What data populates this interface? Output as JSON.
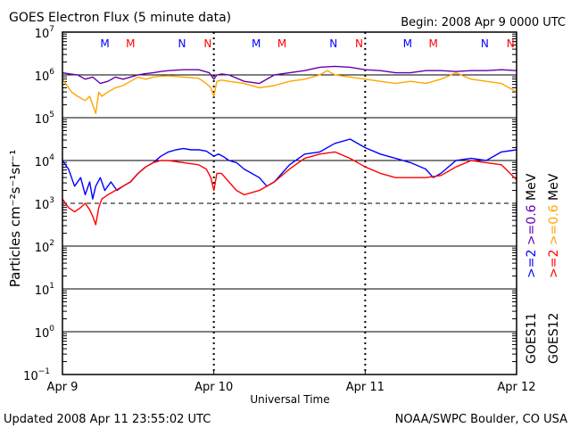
{
  "chart_data": {
    "type": "line",
    "title": "GOES Electron Flux (5 minute data)",
    "begin": "Begin: 2008 Apr 9 0000 UTC",
    "xlabel": "Universal Time",
    "ylabel": "Particles cm⁻²s⁻¹sr⁻¹",
    "updated": "Updated 2008 Apr 11 23:55:02 UTC",
    "credit": "NOAA/SWPC Boulder, CO USA",
    "x_range_days": [
      0,
      3
    ],
    "x_ticks": [
      {
        "label": "Apr 9",
        "day": 0
      },
      {
        "label": "Apr 10",
        "day": 1
      },
      {
        "label": "Apr 11",
        "day": 2
      },
      {
        "label": "Apr 12",
        "day": 3
      }
    ],
    "ylim_exp": [
      -1,
      7
    ],
    "y_ticks": [
      {
        "base": "10",
        "exp": "7"
      },
      {
        "base": "10",
        "exp": "6"
      },
      {
        "base": "10",
        "exp": "5"
      },
      {
        "base": "10",
        "exp": "4"
      },
      {
        "base": "10",
        "exp": "3"
      },
      {
        "base": "10",
        "exp": "2"
      },
      {
        "base": "10",
        "exp": "1"
      },
      {
        "base": "10",
        "exp": "0"
      },
      {
        "base": "10",
        "exp": "−1"
      }
    ],
    "dashed_threshold_exp": 3,
    "midnight_markers": [
      {
        "day": 0.28,
        "label": "M",
        "color": "#0000ff"
      },
      {
        "day": 0.45,
        "label": "M",
        "color": "#ff0000"
      },
      {
        "day": 0.79,
        "label": "N",
        "color": "#0000ff"
      },
      {
        "day": 0.96,
        "label": "N",
        "color": "#ff0000"
      },
      {
        "day": 1.28,
        "label": "M",
        "color": "#0000ff"
      },
      {
        "day": 1.45,
        "label": "M",
        "color": "#ff0000"
      },
      {
        "day": 1.79,
        "label": "N",
        "color": "#0000ff"
      },
      {
        "day": 1.96,
        "label": "N",
        "color": "#ff0000"
      },
      {
        "day": 2.28,
        "label": "M",
        "color": "#0000ff"
      },
      {
        "day": 2.45,
        "label": "M",
        "color": "#ff0000"
      },
      {
        "day": 2.79,
        "label": "N",
        "color": "#0000ff"
      },
      {
        "day": 2.96,
        "label": "N",
        "color": "#ff0000"
      }
    ],
    "legend": [
      {
        "satellite": "GOES11",
        "entries": [
          {
            "text": ">=2",
            "color": "#0000ff"
          },
          {
            "text": ">=0.6",
            "color": "#6600aa"
          },
          {
            "text": "MeV",
            "color": "#000000"
          }
        ]
      },
      {
        "satellite": "GOES12",
        "entries": [
          {
            "text": ">=2",
            "color": "#ff0000"
          },
          {
            "text": ">=0.6",
            "color": "#ffa500"
          },
          {
            "text": "MeV",
            "color": "#000000"
          }
        ]
      }
    ],
    "series": [
      {
        "name": "GOES11 >=0.6 MeV",
        "color": "#6600aa",
        "x": [
          0,
          0.05,
          0.1,
          0.15,
          0.2,
          0.25,
          0.3,
          0.35,
          0.4,
          0.45,
          0.5,
          0.55,
          0.6,
          0.65,
          0.7,
          0.8,
          0.9,
          0.97,
          1.0,
          1.02,
          1.05,
          1.1,
          1.2,
          1.3,
          1.4,
          1.5,
          1.6,
          1.7,
          1.8,
          1.85,
          1.9,
          2.0,
          2.1,
          2.2,
          2.3,
          2.4,
          2.5,
          2.6,
          2.7,
          2.8,
          2.9,
          3.0
        ],
        "y": [
          6.05,
          6.02,
          6.0,
          5.9,
          5.95,
          5.8,
          5.85,
          5.95,
          5.9,
          5.95,
          6.0,
          6.03,
          6.05,
          6.08,
          6.1,
          6.12,
          6.12,
          6.05,
          5.9,
          6.0,
          6.02,
          6.0,
          5.85,
          5.8,
          6.0,
          6.05,
          6.1,
          6.18,
          6.2,
          6.19,
          6.18,
          6.12,
          6.1,
          6.05,
          6.05,
          6.1,
          6.1,
          6.08,
          6.1,
          6.1,
          6.12,
          6.1
        ]
      },
      {
        "name": "GOES12 >=0.6 MeV",
        "color": "#ffa500",
        "x": [
          0,
          0.03,
          0.06,
          0.1,
          0.15,
          0.18,
          0.2,
          0.22,
          0.24,
          0.26,
          0.3,
          0.35,
          0.4,
          0.45,
          0.5,
          0.55,
          0.6,
          0.65,
          0.7,
          0.8,
          0.9,
          0.95,
          0.98,
          1.0,
          1.02,
          1.05,
          1.1,
          1.2,
          1.3,
          1.4,
          1.5,
          1.6,
          1.7,
          1.75,
          1.8,
          1.9,
          2.0,
          2.1,
          2.2,
          2.3,
          2.4,
          2.5,
          2.6,
          2.7,
          2.8,
          2.9,
          3.0
        ],
        "y": [
          5.9,
          5.75,
          5.6,
          5.5,
          5.4,
          5.5,
          5.3,
          5.1,
          5.6,
          5.5,
          5.6,
          5.7,
          5.75,
          5.85,
          5.95,
          5.9,
          5.95,
          5.97,
          5.98,
          5.95,
          5.92,
          5.8,
          5.7,
          5.5,
          5.85,
          5.88,
          5.85,
          5.8,
          5.7,
          5.75,
          5.85,
          5.9,
          6.0,
          6.1,
          6.0,
          5.95,
          5.9,
          5.85,
          5.8,
          5.85,
          5.8,
          5.9,
          6.05,
          5.9,
          5.85,
          5.8,
          5.6
        ]
      },
      {
        "name": "GOES11 >=2 MeV",
        "color": "#0000ff",
        "x": [
          0,
          0.04,
          0.08,
          0.12,
          0.15,
          0.18,
          0.2,
          0.22,
          0.25,
          0.28,
          0.32,
          0.36,
          0.4,
          0.45,
          0.5,
          0.55,
          0.6,
          0.65,
          0.7,
          0.75,
          0.8,
          0.85,
          0.9,
          0.95,
          0.98,
          1.0,
          1.03,
          1.06,
          1.1,
          1.15,
          1.2,
          1.25,
          1.3,
          1.35,
          1.4,
          1.5,
          1.6,
          1.7,
          1.8,
          1.9,
          2.0,
          2.1,
          2.2,
          2.3,
          2.4,
          2.45,
          2.5,
          2.6,
          2.7,
          2.8,
          2.9,
          3.0
        ],
        "y": [
          4.0,
          3.8,
          3.4,
          3.6,
          3.2,
          3.5,
          3.1,
          3.4,
          3.6,
          3.3,
          3.5,
          3.3,
          3.4,
          3.5,
          3.7,
          3.85,
          3.95,
          4.1,
          4.2,
          4.25,
          4.28,
          4.25,
          4.25,
          4.22,
          4.15,
          4.1,
          4.15,
          4.1,
          4.0,
          3.95,
          3.8,
          3.7,
          3.6,
          3.4,
          3.5,
          3.9,
          4.15,
          4.2,
          4.4,
          4.5,
          4.3,
          4.15,
          4.05,
          3.95,
          3.8,
          3.6,
          3.7,
          4.0,
          4.05,
          4.0,
          4.2,
          4.25
        ]
      },
      {
        "name": "GOES12 >=2 MeV",
        "color": "#ff0000",
        "x": [
          0,
          0.04,
          0.08,
          0.12,
          0.15,
          0.18,
          0.2,
          0.22,
          0.24,
          0.26,
          0.3,
          0.35,
          0.4,
          0.45,
          0.5,
          0.55,
          0.6,
          0.65,
          0.7,
          0.8,
          0.9,
          0.95,
          0.98,
          1.0,
          1.02,
          1.05,
          1.1,
          1.15,
          1.2,
          1.3,
          1.4,
          1.5,
          1.6,
          1.7,
          1.8,
          1.9,
          2.0,
          2.1,
          2.2,
          2.3,
          2.4,
          2.5,
          2.6,
          2.7,
          2.8,
          2.9,
          3.0
        ],
        "y": [
          3.1,
          2.9,
          2.8,
          2.9,
          3.0,
          2.85,
          2.7,
          2.5,
          2.9,
          3.1,
          3.2,
          3.3,
          3.4,
          3.5,
          3.7,
          3.85,
          3.95,
          4.0,
          4.0,
          3.95,
          3.9,
          3.8,
          3.6,
          3.3,
          3.7,
          3.7,
          3.5,
          3.3,
          3.2,
          3.3,
          3.5,
          3.8,
          4.05,
          4.15,
          4.2,
          4.05,
          3.85,
          3.7,
          3.6,
          3.6,
          3.6,
          3.65,
          3.85,
          4.0,
          3.95,
          3.9,
          3.55
        ]
      }
    ]
  }
}
